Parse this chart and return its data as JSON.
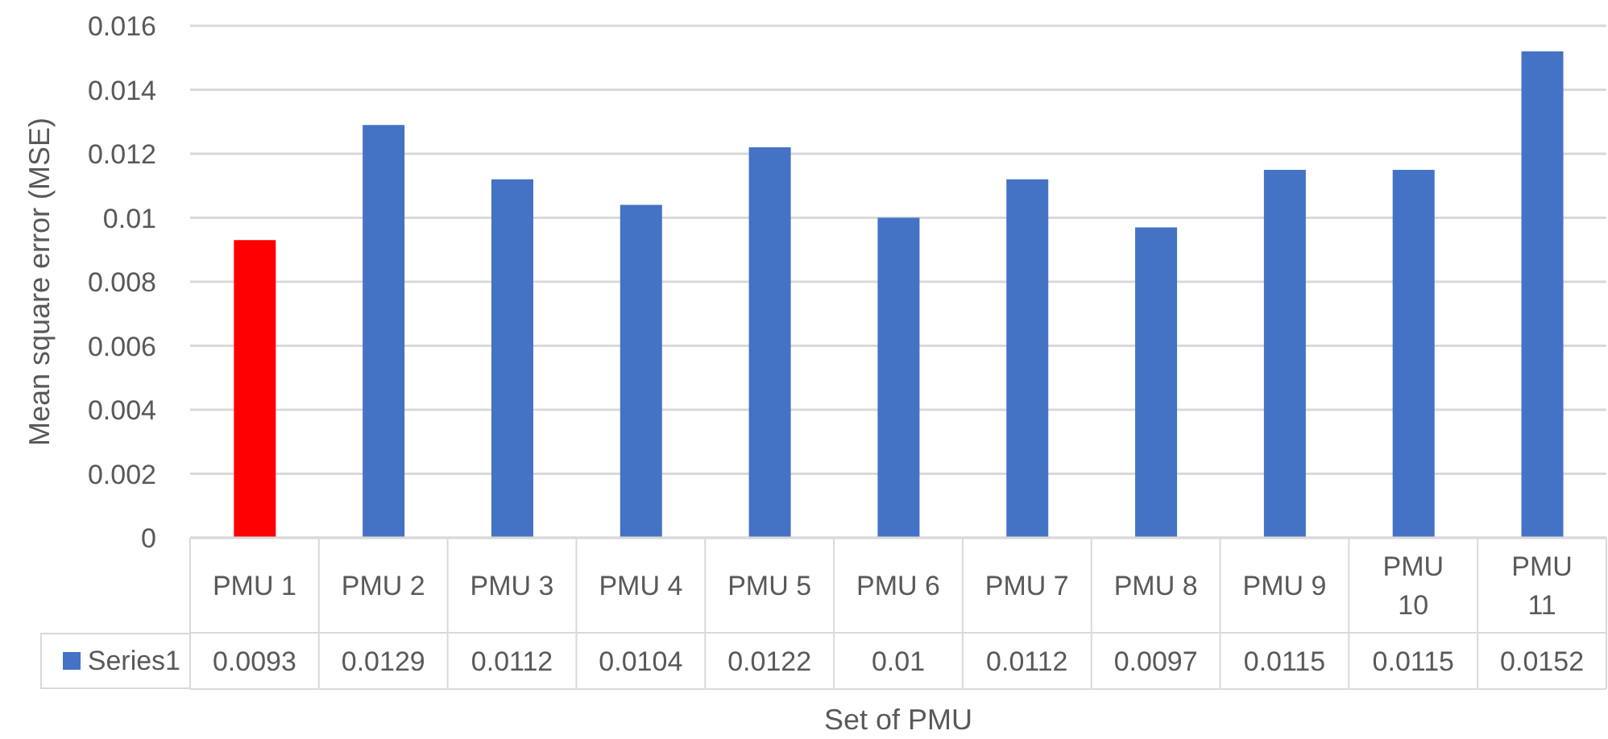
{
  "chart_data": {
    "type": "bar",
    "xlabel": "Set of PMU",
    "ylabel": "Mean square error (MSE)",
    "categories": [
      "PMU 1",
      "PMU 2",
      "PMU 3",
      "PMU 4",
      "PMU 5",
      "PMU 6",
      "PMU 7",
      "PMU 8",
      "PMU 9",
      "PMU 10",
      "PMU 11"
    ],
    "series": [
      {
        "name": "Series1",
        "color": "#4472c4",
        "colors": [
          "#ff0000",
          "#4472c4",
          "#4472c4",
          "#4472c4",
          "#4472c4",
          "#4472c4",
          "#4472c4",
          "#4472c4",
          "#4472c4",
          "#4472c4",
          "#4472c4"
        ],
        "values": [
          0.0093,
          0.0129,
          0.0112,
          0.0104,
          0.0122,
          0.01,
          0.0112,
          0.0097,
          0.0115,
          0.0115,
          0.0152
        ]
      }
    ],
    "ylim": [
      0,
      0.016
    ],
    "yticks": [
      0,
      0.002,
      0.004,
      0.006,
      0.008,
      0.01,
      0.012,
      0.014,
      0.016
    ],
    "grid": "y",
    "legend": "bottom left",
    "data_labels": true
  }
}
